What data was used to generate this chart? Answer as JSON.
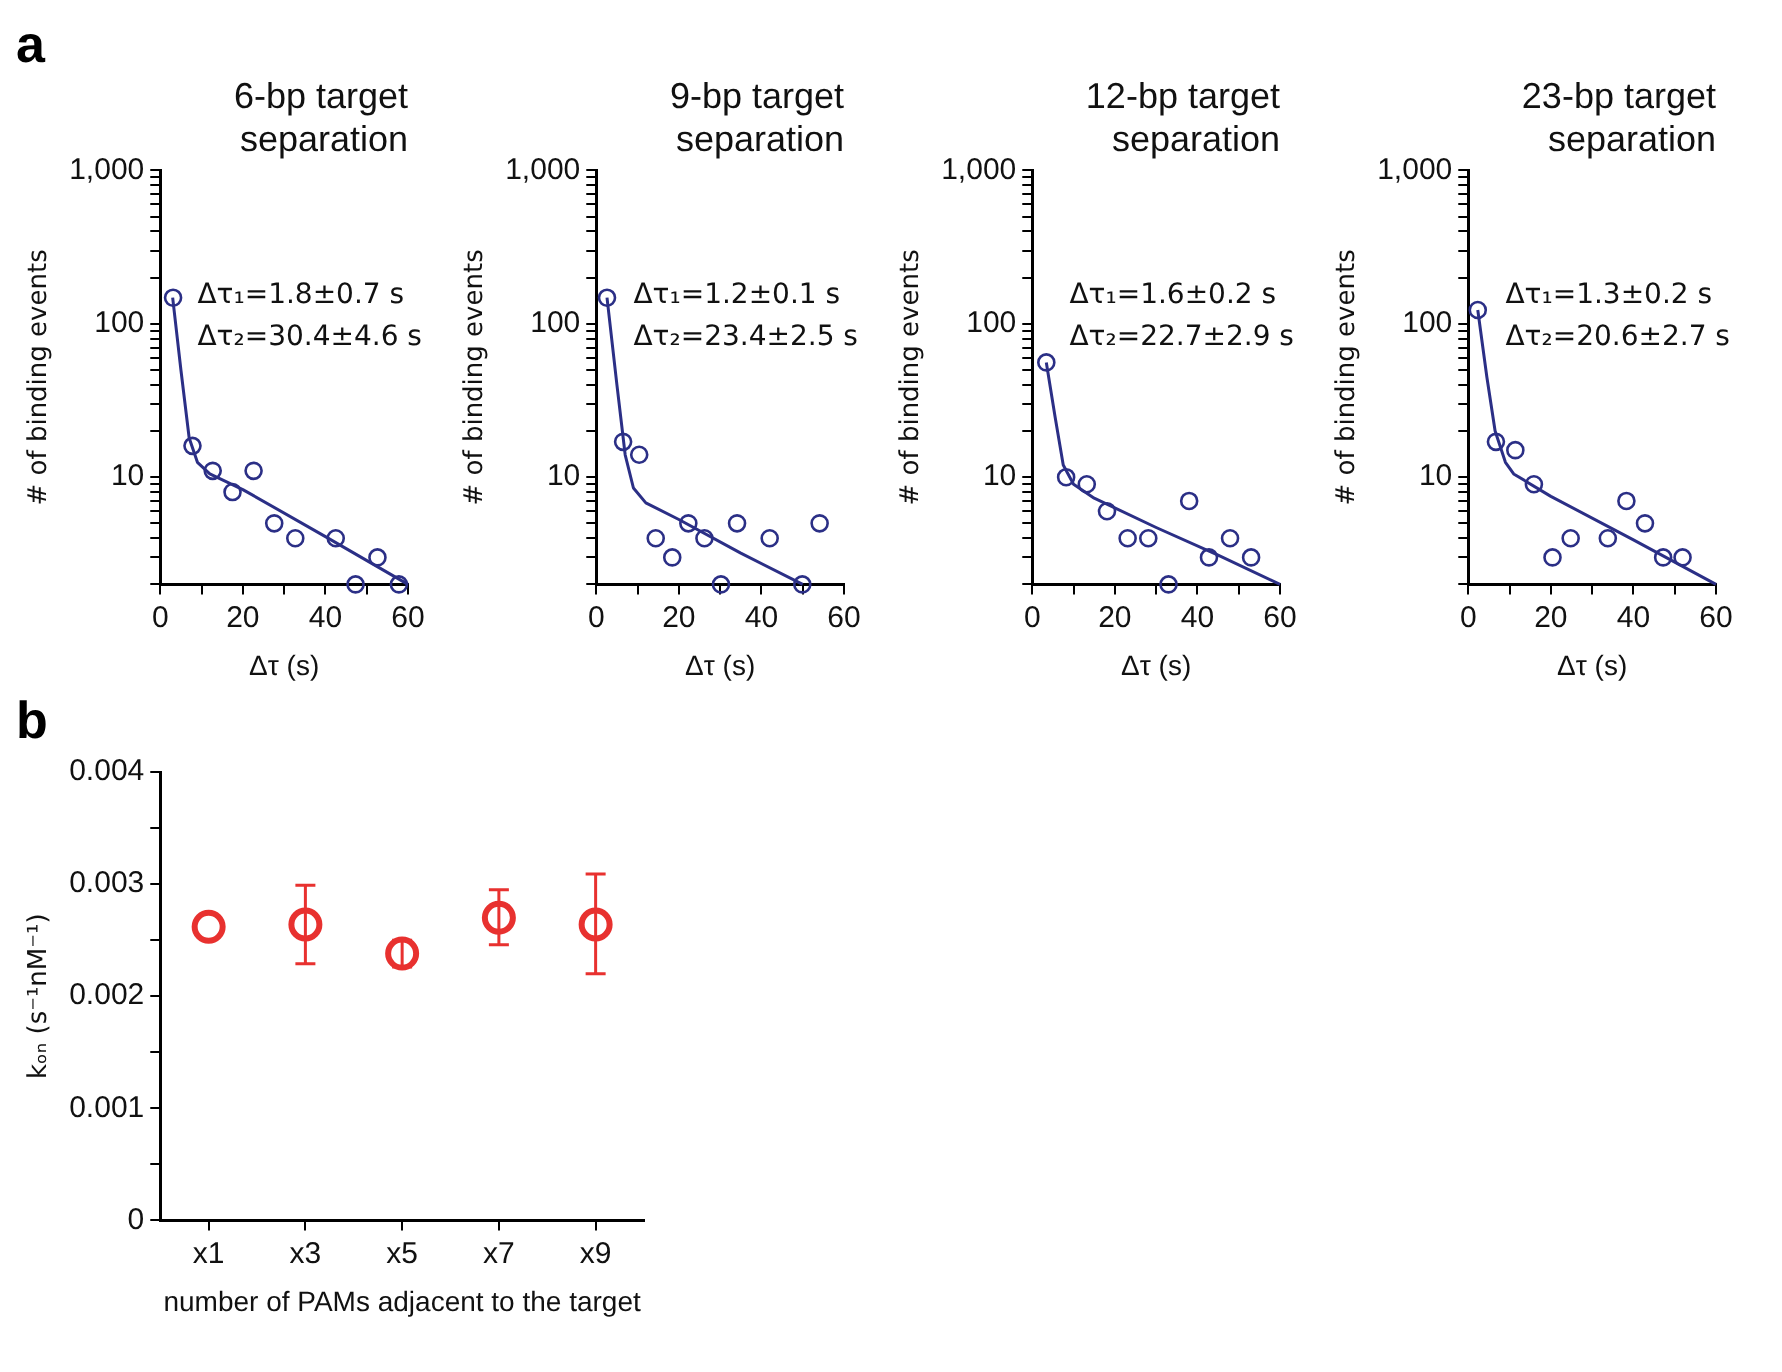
{
  "chart_data": [
    {
      "type": "scatter",
      "title": "6-bp target separation",
      "xlabel": "Δτ (s)",
      "ylabel": "# of binding events",
      "annotations": [
        "a",
        "Δτ₁=1.8±0.7 s",
        "Δτ₂=30.4±4.6 s"
      ],
      "log": "y",
      "grid": false,
      "legend": false,
      "xlim": [
        0,
        60
      ],
      "xticks": [
        0,
        {
          "value": 10,
          "label": null
        },
        20,
        {
          "value": 30,
          "label": null
        },
        40,
        {
          "value": 50,
          "label": null
        },
        60
      ],
      "ylim": [
        2,
        1000
      ],
      "yticks": [
        {
          "value": 2,
          "label": null
        },
        {
          "value": 3,
          "label": null
        },
        {
          "value": 4,
          "label": null
        },
        {
          "value": 5,
          "label": null
        },
        {
          "value": 6,
          "label": null
        },
        {
          "value": 7,
          "label": null
        },
        {
          "value": 8,
          "label": null
        },
        {
          "value": 9,
          "label": null
        },
        10,
        {
          "value": 20,
          "label": null
        },
        {
          "value": 30,
          "label": null
        },
        {
          "value": 40,
          "label": null
        },
        {
          "value": 50,
          "label": null
        },
        {
          "value": 60,
          "label": null
        },
        {
          "value": 70,
          "label": null
        },
        {
          "value": 80,
          "label": null
        },
        {
          "value": 90,
          "label": null
        },
        100,
        {
          "value": 200,
          "label": null
        },
        {
          "value": 300,
          "label": null
        },
        {
          "value": 400,
          "label": null
        },
        {
          "value": 500,
          "label": null
        },
        {
          "value": 600,
          "label": null
        },
        {
          "value": 700,
          "label": null
        },
        {
          "value": 800,
          "label": null
        },
        {
          "value": 900,
          "label": null
        },
        {
          "value": 1000,
          "label": "1,000"
        }
      ],
      "series": [
        {
          "marker": "circle",
          "color": "#2b2f86",
          "x": [
            3.1,
            7.8,
            12.7,
            17.5,
            22.6,
            27.6,
            32.7,
            42.5,
            47.3,
            52.6,
            57.8
          ],
          "values": [
            148,
            16,
            11,
            8,
            11,
            5,
            4,
            4,
            2,
            3,
            2
          ]
        },
        {
          "type": "line",
          "marker": "none",
          "color": "#2b2f86",
          "x": [
            3,
            5,
            7,
            9,
            12,
            20,
            40,
            60
          ],
          "values": [
            148,
            50,
            18,
            12.5,
            10.5,
            8.3,
            4.1,
            2
          ]
        }
      ]
    },
    {
      "type": "scatter",
      "title": "9-bp target separation",
      "xlabel": "Δτ (s)",
      "ylabel": "# of binding events",
      "annotations": [
        "Δτ₁=1.2±0.1 s",
        "Δτ₂=23.4±2.5 s"
      ],
      "log": "y",
      "grid": false,
      "legend": false,
      "xlim": [
        0,
        60
      ],
      "xticks": [
        0,
        {
          "value": 10,
          "label": null
        },
        20,
        {
          "value": 30,
          "label": null
        },
        40,
        {
          "value": 50,
          "label": null
        },
        60
      ],
      "ylim": [
        2,
        1000
      ],
      "yticks": [
        {
          "value": 2,
          "label": null
        },
        {
          "value": 3,
          "label": null
        },
        {
          "value": 4,
          "label": null
        },
        {
          "value": 5,
          "label": null
        },
        {
          "value": 6,
          "label": null
        },
        {
          "value": 7,
          "label": null
        },
        {
          "value": 8,
          "label": null
        },
        {
          "value": 9,
          "label": null
        },
        10,
        {
          "value": 20,
          "label": null
        },
        {
          "value": 30,
          "label": null
        },
        {
          "value": 40,
          "label": null
        },
        {
          "value": 50,
          "label": null
        },
        {
          "value": 60,
          "label": null
        },
        {
          "value": 70,
          "label": null
        },
        {
          "value": 80,
          "label": null
        },
        {
          "value": 90,
          "label": null
        },
        100,
        {
          "value": 200,
          "label": null
        },
        {
          "value": 300,
          "label": null
        },
        {
          "value": 400,
          "label": null
        },
        {
          "value": 500,
          "label": null
        },
        {
          "value": 600,
          "label": null
        },
        {
          "value": 700,
          "label": null
        },
        {
          "value": 800,
          "label": null
        },
        {
          "value": 900,
          "label": null
        },
        {
          "value": 1000,
          "label": "1,000"
        }
      ],
      "series": [
        {
          "marker": "circle",
          "color": "#2b2f86",
          "x": [
            2.6,
            6.5,
            10.4,
            14.4,
            18.4,
            22.3,
            26.2,
            30.2,
            34.1,
            42,
            49.9,
            54.1
          ],
          "values": [
            148,
            17,
            14,
            4,
            3,
            5,
            4,
            2,
            5,
            4,
            2,
            5
          ]
        },
        {
          "type": "line",
          "marker": "none",
          "color": "#2b2f86",
          "x": [
            2.6,
            5,
            7,
            9,
            12,
            20,
            35,
            50
          ],
          "values": [
            148,
            40,
            14,
            8.5,
            6.8,
            5.3,
            3.2,
            2
          ]
        }
      ]
    },
    {
      "type": "scatter",
      "title": "12-bp target separation",
      "xlabel": "Δτ (s)",
      "ylabel": "# of binding events",
      "annotations": [
        "Δτ₁=1.6±0.2 s",
        "Δτ₂=22.7±2.9 s"
      ],
      "log": "y",
      "grid": false,
      "legend": false,
      "xlim": [
        0,
        60
      ],
      "xticks": [
        0,
        {
          "value": 10,
          "label": null
        },
        20,
        {
          "value": 30,
          "label": null
        },
        40,
        {
          "value": 50,
          "label": null
        },
        60
      ],
      "ylim": [
        2,
        1000
      ],
      "yticks": [
        {
          "value": 2,
          "label": null
        },
        {
          "value": 3,
          "label": null
        },
        {
          "value": 4,
          "label": null
        },
        {
          "value": 5,
          "label": null
        },
        {
          "value": 6,
          "label": null
        },
        {
          "value": 7,
          "label": null
        },
        {
          "value": 8,
          "label": null
        },
        {
          "value": 9,
          "label": null
        },
        10,
        {
          "value": 20,
          "label": null
        },
        {
          "value": 30,
          "label": null
        },
        {
          "value": 40,
          "label": null
        },
        {
          "value": 50,
          "label": null
        },
        {
          "value": 60,
          "label": null
        },
        {
          "value": 70,
          "label": null
        },
        {
          "value": 80,
          "label": null
        },
        {
          "value": 90,
          "label": null
        },
        100,
        {
          "value": 200,
          "label": null
        },
        {
          "value": 300,
          "label": null
        },
        {
          "value": 400,
          "label": null
        },
        {
          "value": 500,
          "label": null
        },
        {
          "value": 600,
          "label": null
        },
        {
          "value": 700,
          "label": null
        },
        {
          "value": 800,
          "label": null
        },
        {
          "value": 900,
          "label": null
        },
        {
          "value": 1000,
          "label": "1,000"
        }
      ],
      "series": [
        {
          "marker": "circle",
          "color": "#2b2f86",
          "x": [
            3.4,
            8.2,
            13.2,
            18.1,
            23.1,
            28.1,
            33,
            38,
            42.8,
            47.9,
            53
          ],
          "values": [
            56,
            10,
            9,
            6,
            4,
            4,
            2,
            7,
            3,
            4,
            3
          ]
        },
        {
          "type": "line",
          "marker": "none",
          "color": "#2b2f86",
          "x": [
            3.4,
            5.5,
            7.5,
            10,
            15,
            30,
            45,
            60
          ],
          "values": [
            56,
            25,
            12,
            9,
            7.3,
            4.7,
            3.1,
            2
          ]
        }
      ]
    },
    {
      "type": "scatter",
      "title": "23-bp target separation",
      "xlabel": "Δτ (s)",
      "ylabel": "# of binding events",
      "annotations": [
        "Δτ₁=1.3±0.2 s",
        "Δτ₂=20.6±2.7 s"
      ],
      "log": "y",
      "grid": false,
      "legend": false,
      "xlim": [
        0,
        60
      ],
      "xticks": [
        0,
        {
          "value": 10,
          "label": null
        },
        20,
        {
          "value": 30,
          "label": null
        },
        40,
        {
          "value": 50,
          "label": null
        },
        60
      ],
      "ylim": [
        2,
        1000
      ],
      "yticks": [
        {
          "value": 2,
          "label": null
        },
        {
          "value": 3,
          "label": null
        },
        {
          "value": 4,
          "label": null
        },
        {
          "value": 5,
          "label": null
        },
        {
          "value": 6,
          "label": null
        },
        {
          "value": 7,
          "label": null
        },
        {
          "value": 8,
          "label": null
        },
        {
          "value": 9,
          "label": null
        },
        10,
        {
          "value": 20,
          "label": null
        },
        {
          "value": 30,
          "label": null
        },
        {
          "value": 40,
          "label": null
        },
        {
          "value": 50,
          "label": null
        },
        {
          "value": 60,
          "label": null
        },
        {
          "value": 70,
          "label": null
        },
        {
          "value": 80,
          "label": null
        },
        {
          "value": 90,
          "label": null
        },
        100,
        {
          "value": 200,
          "label": null
        },
        {
          "value": 300,
          "label": null
        },
        {
          "value": 400,
          "label": null
        },
        {
          "value": 500,
          "label": null
        },
        {
          "value": 600,
          "label": null
        },
        {
          "value": 700,
          "label": null
        },
        {
          "value": 800,
          "label": null
        },
        {
          "value": 900,
          "label": null
        },
        {
          "value": 1000,
          "label": "1,000"
        }
      ],
      "series": [
        {
          "marker": "circle",
          "color": "#2b2f86",
          "x": [
            2.3,
            6.7,
            11.4,
            15.9,
            20.4,
            24.8,
            33.8,
            38.3,
            42.8,
            47.2,
            51.9
          ],
          "values": [
            123,
            17,
            15,
            9,
            3,
            4,
            4,
            7,
            5,
            3,
            3
          ]
        },
        {
          "type": "line",
          "marker": "none",
          "color": "#2b2f86",
          "x": [
            2.3,
            4.5,
            6.5,
            9,
            11,
            20,
            40,
            60
          ],
          "values": [
            123,
            45,
            20,
            12.5,
            10.5,
            7.5,
            3.9,
            2
          ]
        }
      ]
    },
    {
      "type": "scatter",
      "xlabel": "number of PAMs adjacent to the target",
      "ylabel": "kₒₙ (s⁻¹nM⁻¹)",
      "annotations": [
        "b"
      ],
      "grid": false,
      "legend": false,
      "marker": "circle",
      "categories": [
        "x1",
        "x3",
        "x5",
        "x7",
        "x9"
      ],
      "ylim": [
        0,
        0.004
      ],
      "yticks": [
        0,
        {
          "value": 0.0005,
          "label": null
        },
        0.001,
        {
          "value": 0.0015,
          "label": null
        },
        0.002,
        {
          "value": 0.0025,
          "label": null
        },
        0.003,
        {
          "value": 0.0035,
          "label": null
        },
        0.004
      ],
      "series": [
        {
          "color": "#e8312f",
          "values": [
            0.00262,
            0.00264,
            0.00238,
            0.0027,
            0.00264
          ],
          "errors": [
            null,
            [
              0.00229,
              0.00299
            ],
            [
              0.00226,
              0.0025
            ],
            [
              0.00246,
              0.00295
            ],
            [
              0.0022,
              0.00309
            ]
          ]
        }
      ]
    }
  ]
}
